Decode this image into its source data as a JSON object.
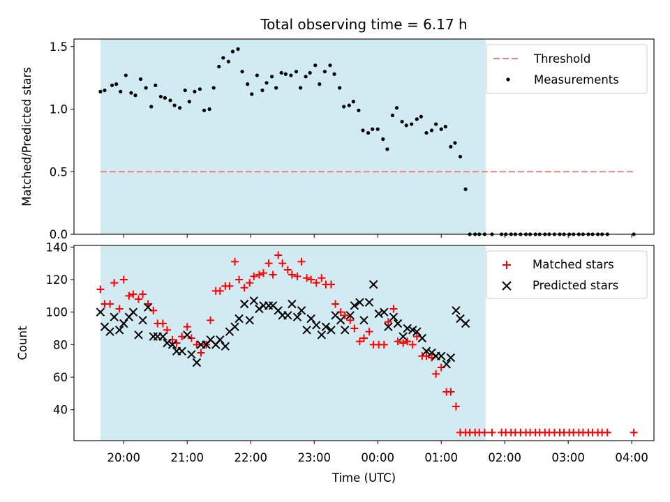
{
  "chart_data": [
    {
      "type": "scatter",
      "title": "Total observing time = 6.17 h",
      "ylabel": "Matched/Predicted stars",
      "xlabel": "",
      "xlim": [
        "19:13",
        "04:21"
      ],
      "ylim": [
        0,
        1.56
      ],
      "yticks": [
        0.0,
        0.5,
        1.0,
        1.5
      ],
      "yticklabels": [
        "0.0",
        "0.5",
        "1.0",
        "1.5"
      ],
      "grid": false,
      "legend_position": "top-right",
      "shaded_span": {
        "start": "19:38",
        "end": "01:42",
        "color": "#add8e6"
      },
      "threshold": {
        "name": "Threshold",
        "value": 0.5,
        "x_start": "19:38",
        "x_end": "04:03",
        "color": "#f08080",
        "style": "dashed"
      },
      "series": [
        {
          "name": "Measurements",
          "color": "#000000",
          "marker": "dot",
          "x": [
            "19:38",
            "19:42",
            "19:49",
            "19:53",
            "19:57",
            "20:02",
            "20:07",
            "20:11",
            "20:16",
            "20:21",
            "20:26",
            "20:30",
            "20:35",
            "20:39",
            "20:44",
            "20:48",
            "20:53",
            "20:58",
            "21:02",
            "21:07",
            "21:12",
            "21:16",
            "21:21",
            "21:25",
            "21:30",
            "21:34",
            "21:39",
            "21:43",
            "21:48",
            "21:52",
            "21:57",
            "22:01",
            "22:06",
            "22:11",
            "22:15",
            "22:20",
            "22:24",
            "22:29",
            "22:33",
            "22:38",
            "22:43",
            "22:47",
            "22:52",
            "22:56",
            "23:01",
            "23:05",
            "23:10",
            "23:15",
            "23:19",
            "23:24",
            "23:28",
            "23:33",
            "23:37",
            "23:42",
            "23:46",
            "23:51",
            "23:55",
            "24:00",
            "24:05",
            "24:09",
            "24:14",
            "24:18",
            "24:23",
            "24:27",
            "24:32",
            "24:37",
            "24:41",
            "24:46",
            "24:51",
            "24:55",
            "25:00",
            "25:04",
            "25:09",
            "25:13",
            "25:18",
            "25:23",
            "25:27",
            "25:32",
            "25:36",
            "25:41",
            "25:48",
            "25:57",
            "26:01",
            "26:06",
            "26:10",
            "26:15",
            "26:20",
            "26:24",
            "26:29",
            "26:33",
            "26:38",
            "26:42",
            "26:47",
            "26:52",
            "26:56",
            "27:01",
            "27:05",
            "27:10",
            "27:14",
            "27:19",
            "27:23",
            "27:28",
            "27:32",
            "27:37",
            "28:02"
          ],
          "y": [
            1.14,
            1.15,
            1.19,
            1.2,
            1.14,
            1.27,
            1.13,
            1.11,
            1.24,
            1.17,
            1.02,
            1.19,
            1.1,
            1.09,
            1.07,
            1.03,
            1.01,
            1.15,
            1.06,
            1.14,
            1.16,
            0.99,
            1.0,
            1.17,
            1.34,
            1.41,
            1.38,
            1.46,
            1.48,
            1.3,
            1.2,
            1.12,
            1.27,
            1.15,
            1.21,
            1.26,
            1.17,
            1.29,
            1.28,
            1.27,
            1.3,
            1.17,
            1.26,
            1.29,
            1.35,
            1.2,
            1.3,
            1.35,
            1.28,
            1.17,
            1.02,
            1.03,
            1.06,
            0.99,
            0.83,
            0.81,
            0.84,
            0.84,
            0.76,
            0.68,
            0.95,
            1.01,
            0.9,
            0.87,
            0.88,
            0.92,
            0.94,
            0.81,
            0.83,
            0.88,
            0.84,
            0.86,
            0.7,
            0.73,
            0.62,
            0.36,
            0.0,
            0.0,
            0.0,
            0.0,
            0.0,
            0.0,
            0.0,
            0.0,
            0.0,
            0.0,
            0.0,
            0.0,
            0.0,
            0.0,
            0.0,
            0.0,
            0.0,
            0.0,
            0.0,
            0.0,
            0.0,
            0.0,
            0.0,
            0.0,
            0.0,
            0.0,
            0.0,
            0.0,
            0.0
          ]
        }
      ]
    },
    {
      "type": "scatter",
      "title": "",
      "xlabel": "Time (UTC)",
      "ylabel": "Count",
      "xlim": [
        "19:13",
        "04:21"
      ],
      "ylim": [
        21,
        141
      ],
      "xticks": [
        "20:00",
        "21:00",
        "22:00",
        "23:00",
        "00:00",
        "01:00",
        "02:00",
        "03:00",
        "04:00"
      ],
      "yticks": [
        40,
        60,
        80,
        100,
        120,
        140
      ],
      "grid": false,
      "legend_position": "top-right",
      "shaded_span": {
        "start": "19:38",
        "end": "01:42",
        "color": "#add8e6"
      },
      "series": [
        {
          "name": "Matched stars",
          "color": "#ff0000",
          "marker": "plus",
          "x": [
            "19:38",
            "19:42",
            "19:47",
            "19:51",
            "19:56",
            "20:00",
            "20:05",
            "20:09",
            "20:14",
            "20:18",
            "20:23",
            "20:28",
            "20:32",
            "20:37",
            "20:41",
            "20:46",
            "20:50",
            "20:55",
            "21:00",
            "21:04",
            "21:09",
            "21:13",
            "21:18",
            "21:22",
            "21:27",
            "21:31",
            "21:36",
            "21:40",
            "21:45",
            "21:49",
            "21:54",
            "21:59",
            "22:03",
            "22:08",
            "22:12",
            "22:17",
            "22:21",
            "22:26",
            "22:30",
            "22:35",
            "22:39",
            "22:44",
            "22:48",
            "22:53",
            "22:57",
            "23:02",
            "23:07",
            "23:11",
            "23:16",
            "23:20",
            "23:25",
            "23:29",
            "23:34",
            "23:38",
            "23:43",
            "23:47",
            "23:52",
            "23:56",
            "24:01",
            "24:06",
            "24:10",
            "24:15",
            "24:19",
            "24:24",
            "24:28",
            "24:33",
            "24:37",
            "24:42",
            "24:46",
            "24:51",
            "24:55",
            "25:00",
            "25:05",
            "25:09",
            "25:14",
            "25:18",
            "25:23",
            "25:27",
            "25:32",
            "25:36",
            "25:41",
            "25:48",
            "25:57",
            "26:01",
            "26:06",
            "26:10",
            "26:15",
            "26:20",
            "26:24",
            "26:29",
            "26:33",
            "26:38",
            "26:42",
            "26:47",
            "26:52",
            "26:56",
            "27:01",
            "27:05",
            "27:10",
            "27:14",
            "27:19",
            "27:23",
            "27:28",
            "27:32",
            "27:37",
            "28:02"
          ],
          "y": [
            114,
            105,
            105,
            118,
            102,
            120,
            110,
            111,
            108,
            111,
            105,
            101,
            93,
            93,
            89,
            83,
            81,
            85,
            91,
            84,
            80,
            75,
            80,
            95,
            113,
            113,
            116,
            116,
            131,
            120,
            115,
            118,
            122,
            123,
            124,
            130,
            123,
            135,
            130,
            126,
            123,
            122,
            131,
            121,
            120,
            118,
            121,
            117,
            117,
            105,
            100,
            98,
            95,
            90,
            82,
            84,
            88,
            80,
            80,
            80,
            94,
            102,
            82,
            81,
            82,
            80,
            85,
            73,
            73,
            72,
            62,
            66,
            51,
            51,
            42,
            26,
            26,
            26,
            26,
            26,
            26,
            26,
            26,
            26,
            26,
            26,
            26,
            26,
            26,
            26,
            26,
            26,
            26,
            26,
            26,
            26,
            26,
            26,
            26,
            26,
            26,
            26,
            26,
            26,
            26,
            26
          ]
        },
        {
          "name": "Predicted stars",
          "color": "#000000",
          "marker": "x",
          "x": [
            "19:38",
            "19:42",
            "19:47",
            "19:51",
            "19:56",
            "20:00",
            "20:05",
            "20:09",
            "20:14",
            "20:18",
            "20:23",
            "20:28",
            "20:32",
            "20:37",
            "20:41",
            "20:46",
            "20:50",
            "20:55",
            "21:00",
            "21:04",
            "21:09",
            "21:13",
            "21:18",
            "21:22",
            "21:27",
            "21:31",
            "21:36",
            "21:40",
            "21:45",
            "21:49",
            "21:54",
            "21:59",
            "22:03",
            "22:08",
            "22:12",
            "22:17",
            "22:21",
            "22:26",
            "22:30",
            "22:35",
            "22:39",
            "22:44",
            "22:48",
            "22:53",
            "22:57",
            "23:02",
            "23:07",
            "23:11",
            "23:16",
            "23:20",
            "23:25",
            "23:29",
            "23:34",
            "23:38",
            "23:43",
            "23:47",
            "23:52",
            "23:56",
            "24:01",
            "24:06",
            "24:10",
            "24:15",
            "24:19",
            "24:24",
            "24:28",
            "24:33",
            "24:37",
            "24:42",
            "24:46",
            "24:51",
            "24:55",
            "25:00",
            "25:05",
            "25:09",
            "25:14",
            "25:18",
            "25:23"
          ],
          "y": [
            100,
            91,
            88,
            97,
            89,
            93,
            97,
            100,
            86,
            95,
            103,
            85,
            85,
            85,
            81,
            80,
            76,
            76,
            86,
            74,
            69,
            80,
            80,
            83,
            80,
            83,
            79,
            88,
            91,
            96,
            105,
            95,
            107,
            102,
            104,
            104,
            104,
            101,
            98,
            98,
            105,
            97,
            101,
            89,
            96,
            92,
            86,
            91,
            89,
            98,
            95,
            89,
            98,
            104,
            106,
            95,
            106,
            117,
            99,
            100,
            91,
            97,
            93,
            85,
            90,
            89,
            88,
            84,
            76,
            75,
            73,
            73,
            68,
            72,
            101,
            96,
            93
          ]
        }
      ]
    }
  ],
  "x_tick_labels": [
    "20:00",
    "21:00",
    "22:00",
    "23:00",
    "00:00",
    "01:00",
    "02:00",
    "03:00",
    "04:00"
  ]
}
